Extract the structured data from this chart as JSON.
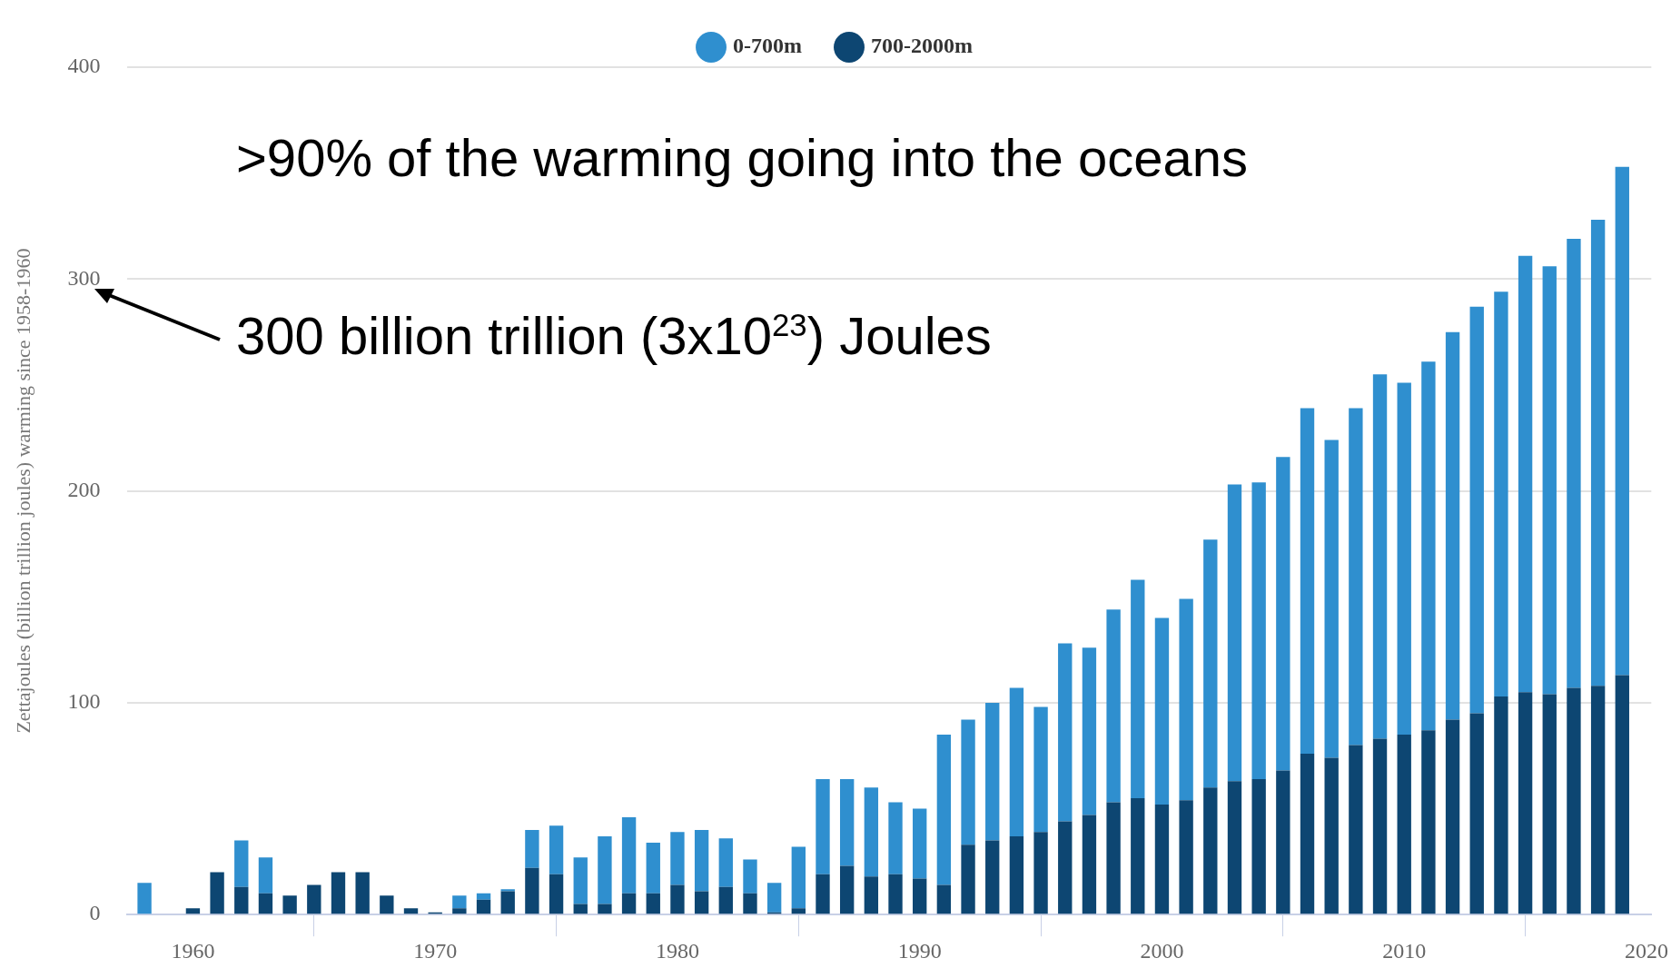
{
  "chart_data": {
    "type": "bar",
    "stacked": true,
    "ylabel": "Zettajoules (billion trillion joules) warming since 1958-1960",
    "x": [
      1958,
      1959,
      1960,
      1961,
      1962,
      1963,
      1964,
      1965,
      1966,
      1967,
      1968,
      1969,
      1970,
      1971,
      1972,
      1973,
      1974,
      1975,
      1976,
      1977,
      1978,
      1979,
      1980,
      1981,
      1982,
      1983,
      1984,
      1985,
      1986,
      1987,
      1988,
      1989,
      1990,
      1991,
      1992,
      1993,
      1994,
      1995,
      1996,
      1997,
      1998,
      1999,
      2000,
      2001,
      2002,
      2003,
      2004,
      2005,
      2006,
      2007,
      2008,
      2009,
      2010,
      2011,
      2012,
      2013,
      2014,
      2015,
      2016,
      2017,
      2018,
      2019
    ],
    "series": [
      {
        "name": "700-2000m",
        "color": "#0d4672",
        "values": [
          0,
          0,
          3,
          20,
          13,
          10,
          9,
          14,
          20,
          20,
          9,
          3,
          1,
          3,
          7,
          11,
          22,
          19,
          5,
          5,
          10,
          10,
          14,
          11,
          13,
          10,
          1,
          3,
          19,
          23,
          18,
          19,
          17,
          14,
          33,
          35,
          37,
          39,
          44,
          47,
          53,
          55,
          52,
          54,
          60,
          63,
          64,
          68,
          76,
          74,
          80,
          83,
          85,
          87,
          92,
          95,
          103,
          105,
          104,
          107,
          108,
          113
        ]
      },
      {
        "name": "0-700m",
        "color": "#2f8fcf",
        "values": [
          15,
          0,
          0,
          0,
          22,
          17,
          0,
          0,
          0,
          0,
          0,
          0,
          0,
          6,
          3,
          1,
          18,
          23,
          22,
          32,
          36,
          24,
          25,
          29,
          23,
          16,
          14,
          29,
          45,
          41,
          42,
          34,
          33,
          71,
          59,
          65,
          70,
          59,
          84,
          79,
          91,
          103,
          88,
          95,
          117,
          140,
          140,
          148,
          163,
          150,
          159,
          172,
          166,
          174,
          183,
          192,
          191,
          206,
          202,
          212,
          220,
          240
        ]
      }
    ],
    "xlim": [
      1957.3,
      2020.2
    ],
    "xticks": [
      1960,
      1970,
      1980,
      1990,
      2000,
      2010,
      2020
    ],
    "ylim": [
      0,
      400
    ],
    "yticks": [
      0,
      100,
      200,
      300,
      400
    ],
    "grid": "y",
    "legend": "top",
    "annotations": [
      ">90% of the warming going into the oceans",
      "300 billion trillion (3x10$^{23}$) Joules"
    ]
  }
}
